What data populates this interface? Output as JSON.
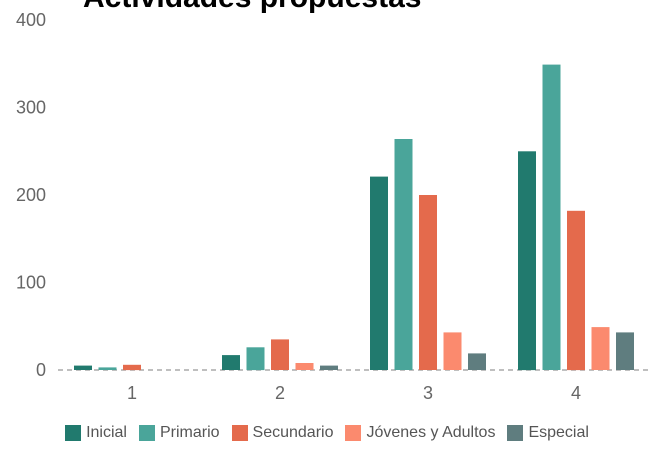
{
  "chart_data": {
    "type": "bar",
    "title": "Actividades propuestas",
    "categories": [
      "1",
      "2",
      "3",
      "4"
    ],
    "series": [
      {
        "name": "Inicial",
        "color": "#217A6E",
        "values": [
          5,
          17,
          221,
          250
        ]
      },
      {
        "name": "Primario",
        "color": "#4AA59A",
        "values": [
          3,
          26,
          264,
          349
        ]
      },
      {
        "name": "Secundario",
        "color": "#E46A4C",
        "values": [
          6,
          35,
          200,
          182
        ]
      },
      {
        "name": "Jóvenes y Adultos",
        "color": "#FB8A6E",
        "values": [
          0,
          8,
          43,
          49
        ]
      },
      {
        "name": "Especial",
        "color": "#5F7D7F",
        "values": [
          0,
          5,
          19,
          43
        ]
      }
    ],
    "yticks": [
      "0",
      "100",
      "200",
      "300",
      "400"
    ],
    "ylim": [
      0,
      400
    ],
    "grid": false,
    "baseline": "dashed",
    "legend_position": "bottom"
  }
}
